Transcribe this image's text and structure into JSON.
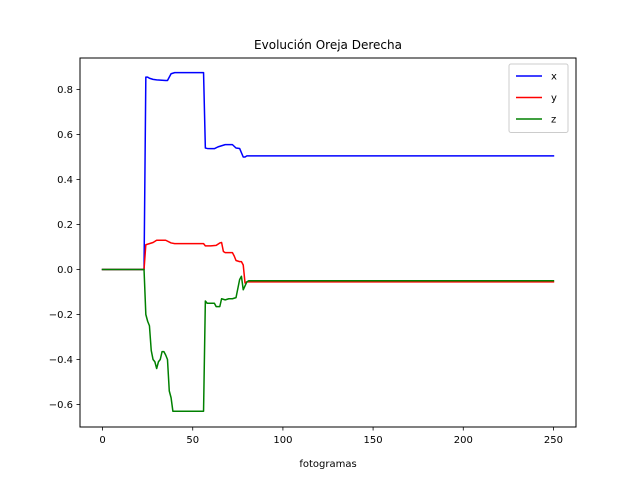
{
  "chart_data": {
    "type": "line",
    "title": "Evolución Oreja Derecha",
    "xlabel": "fotogramas",
    "ylabel": "",
    "xlim": [
      -12.5,
      262.5
    ],
    "ylim": [
      -0.7,
      0.94
    ],
    "xticks": [
      0,
      50,
      100,
      150,
      200,
      250
    ],
    "yticks": [
      -0.6,
      -0.4,
      -0.2,
      0.0,
      0.2,
      0.4,
      0.6,
      0.8
    ],
    "ytick_labels": [
      "−0.6",
      "−0.4",
      "−0.2",
      "0.0",
      "0.2",
      "0.4",
      "0.6",
      "0.8"
    ],
    "grid": false,
    "legend_position": "top-right",
    "series": [
      {
        "name": "x",
        "color": "#0000ff",
        "points": [
          [
            0,
            0
          ],
          [
            23,
            0
          ],
          [
            24,
            0.855
          ],
          [
            25,
            0.855
          ],
          [
            26,
            0.85
          ],
          [
            28,
            0.845
          ],
          [
            30,
            0.843
          ],
          [
            35,
            0.84
          ],
          [
            36,
            0.84
          ],
          [
            38,
            0.87
          ],
          [
            40,
            0.875
          ],
          [
            45,
            0.875
          ],
          [
            50,
            0.875
          ],
          [
            56,
            0.875
          ],
          [
            57,
            0.54
          ],
          [
            58,
            0.538
          ],
          [
            60,
            0.537
          ],
          [
            62,
            0.537
          ],
          [
            64,
            0.545
          ],
          [
            66,
            0.55
          ],
          [
            68,
            0.555
          ],
          [
            70,
            0.555
          ],
          [
            72,
            0.555
          ],
          [
            74,
            0.54
          ],
          [
            76,
            0.538
          ],
          [
            78,
            0.5
          ],
          [
            79,
            0.5
          ],
          [
            80,
            0.505
          ],
          [
            85,
            0.505
          ],
          [
            100,
            0.505
          ],
          [
            150,
            0.505
          ],
          [
            200,
            0.505
          ],
          [
            250,
            0.505
          ]
        ]
      },
      {
        "name": "y",
        "color": "#ff0000",
        "points": [
          [
            0,
            0
          ],
          [
            23,
            0
          ],
          [
            24,
            0.11
          ],
          [
            26,
            0.115
          ],
          [
            28,
            0.12
          ],
          [
            30,
            0.13
          ],
          [
            35,
            0.13
          ],
          [
            38,
            0.118
          ],
          [
            40,
            0.115
          ],
          [
            45,
            0.115
          ],
          [
            50,
            0.115
          ],
          [
            55,
            0.115
          ],
          [
            56,
            0.115
          ],
          [
            57,
            0.105
          ],
          [
            60,
            0.105
          ],
          [
            63,
            0.107
          ],
          [
            65,
            0.118
          ],
          [
            66,
            0.12
          ],
          [
            67,
            0.08
          ],
          [
            68,
            0.075
          ],
          [
            72,
            0.075
          ],
          [
            73,
            0.06
          ],
          [
            74,
            0.04
          ],
          [
            76,
            0.035
          ],
          [
            77,
            0.035
          ],
          [
            78,
            0.02
          ],
          [
            79,
            -0.06
          ],
          [
            80,
            -0.055
          ],
          [
            100,
            -0.055
          ],
          [
            150,
            -0.055
          ],
          [
            200,
            -0.055
          ],
          [
            250,
            -0.055
          ]
        ]
      },
      {
        "name": "z",
        "color": "#008000",
        "points": [
          [
            0,
            0
          ],
          [
            23,
            0
          ],
          [
            24,
            -0.2
          ],
          [
            25,
            -0.23
          ],
          [
            26,
            -0.25
          ],
          [
            27,
            -0.36
          ],
          [
            28,
            -0.4
          ],
          [
            29,
            -0.41
          ],
          [
            30,
            -0.44
          ],
          [
            31,
            -0.41
          ],
          [
            32,
            -0.4
          ],
          [
            33,
            -0.365
          ],
          [
            34,
            -0.365
          ],
          [
            35,
            -0.38
          ],
          [
            36,
            -0.4
          ],
          [
            37,
            -0.54
          ],
          [
            38,
            -0.57
          ],
          [
            39,
            -0.63
          ],
          [
            45,
            -0.63
          ],
          [
            50,
            -0.63
          ],
          [
            56,
            -0.63
          ],
          [
            57,
            -0.14
          ],
          [
            58,
            -0.15
          ],
          [
            60,
            -0.15
          ],
          [
            62,
            -0.15
          ],
          [
            63,
            -0.165
          ],
          [
            65,
            -0.165
          ],
          [
            66,
            -0.13
          ],
          [
            68,
            -0.135
          ],
          [
            70,
            -0.13
          ],
          [
            72,
            -0.13
          ],
          [
            74,
            -0.125
          ],
          [
            76,
            -0.045
          ],
          [
            77,
            -0.03
          ],
          [
            78,
            -0.09
          ],
          [
            80,
            -0.055
          ],
          [
            81,
            -0.05
          ],
          [
            100,
            -0.05
          ],
          [
            150,
            -0.05
          ],
          [
            200,
            -0.05
          ],
          [
            250,
            -0.05
          ]
        ]
      }
    ]
  }
}
